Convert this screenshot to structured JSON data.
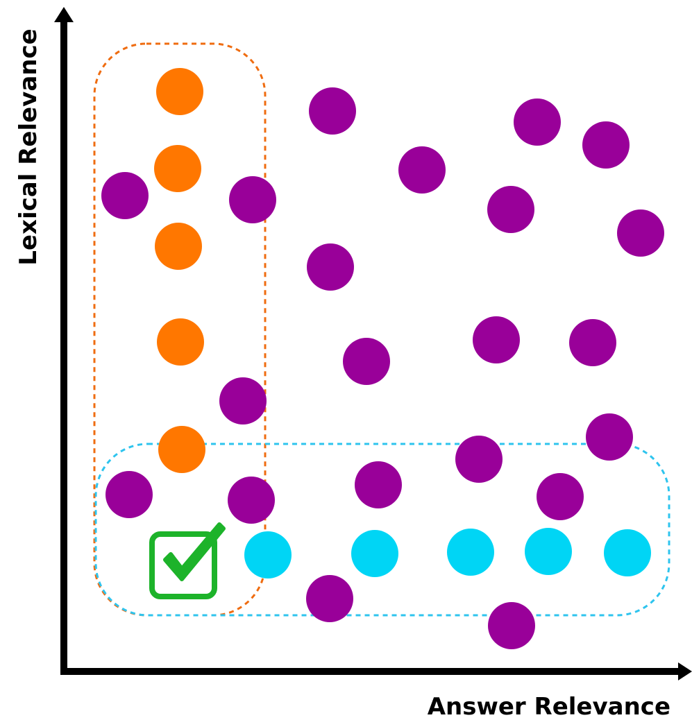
{
  "axes": {
    "x_label": "Answer Relevance",
    "y_label": "Lexical Relevance"
  },
  "colors": {
    "axis": "#000000",
    "other_points": "#990099",
    "lexical_points": "#ff7700",
    "answer_points": "#00d5f5",
    "lexical_region": "#ef6c10",
    "answer_region": "#2ec4ee",
    "checkmark": "#1db32a"
  },
  "legend_icons": {
    "checkmark": "checkmark-icon"
  }
}
